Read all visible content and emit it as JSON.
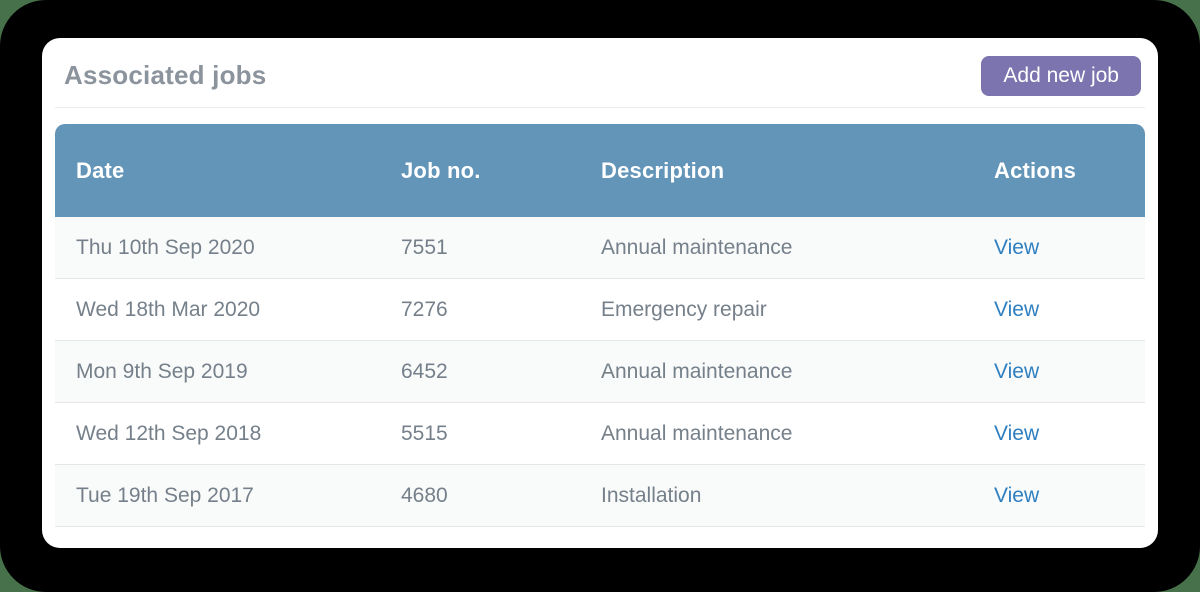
{
  "colors": {
    "page_background": "#46714b",
    "frame_background": "#000000",
    "card_background": "#ffffff",
    "table_header_background": "#6295b8",
    "table_header_text": "#ffffff",
    "row_text": "#75808a",
    "row_stripe": "#f9fafa",
    "link_blue": "#2e7fc0",
    "button_purple": "#7b74ae",
    "title_gray": "#8b939c"
  },
  "card": {
    "title": "Associated jobs",
    "add_button_label": "Add new job"
  },
  "table": {
    "columns": [
      "Date",
      "Job no.",
      "Description",
      "Actions"
    ],
    "rows": [
      {
        "date": "Thu 10th Sep 2020",
        "job_no": "7551",
        "description": "Annual maintenance",
        "action": "View"
      },
      {
        "date": "Wed 18th Mar 2020",
        "job_no": "7276",
        "description": "Emergency repair",
        "action": "View"
      },
      {
        "date": "Mon 9th Sep 2019",
        "job_no": "6452",
        "description": "Annual maintenance",
        "action": "View"
      },
      {
        "date": "Wed 12th Sep 2018",
        "job_no": "5515",
        "description": "Annual maintenance",
        "action": "View"
      },
      {
        "date": "Tue 19th Sep 2017",
        "job_no": "4680",
        "description": "Installation",
        "action": "View"
      }
    ]
  }
}
